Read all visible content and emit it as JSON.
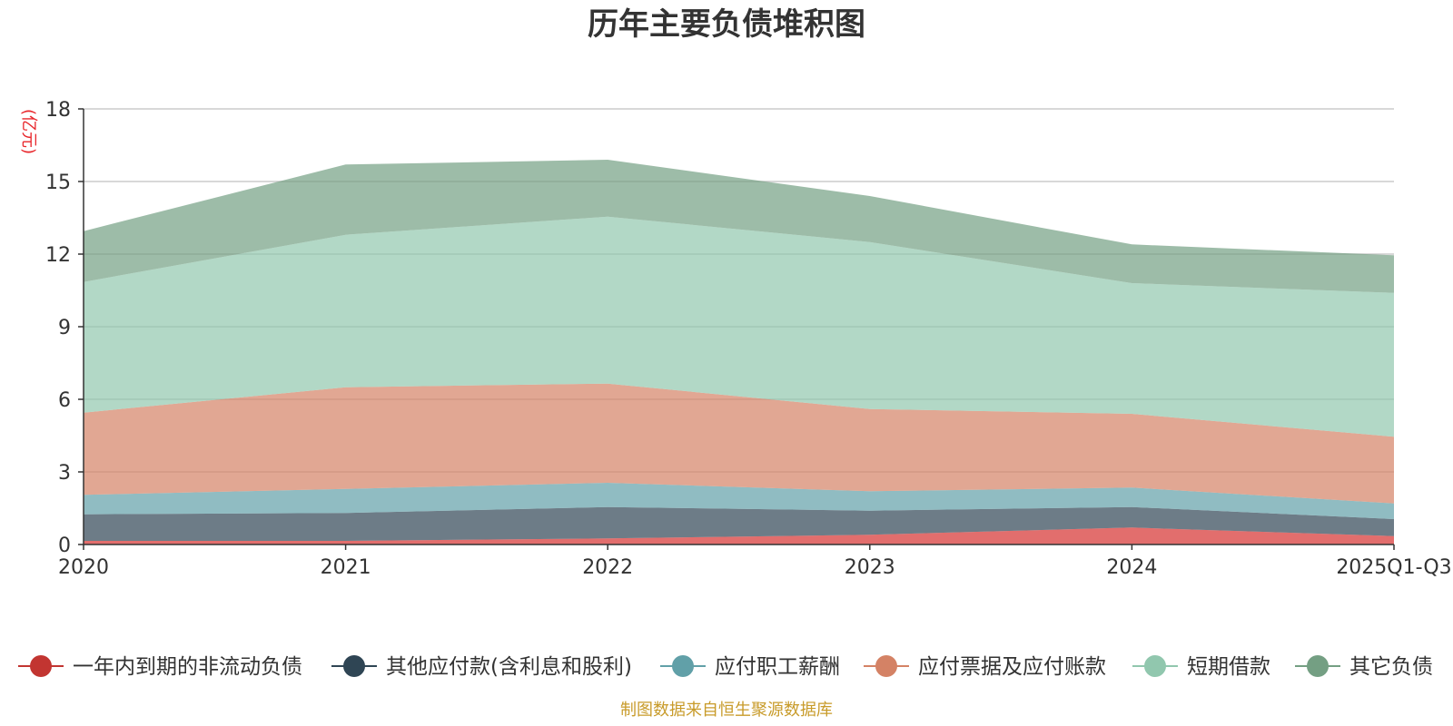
{
  "chart_data": {
    "type": "area",
    "stacked": true,
    "title": "历年主要负债堆积图",
    "unit_label": "(亿元)",
    "source": "制图数据来自恒生聚源数据库",
    "categories": [
      "2020",
      "2021",
      "2022",
      "2023",
      "2024",
      "2025Q1-Q3"
    ],
    "ylim": [
      0,
      18
    ],
    "yticks": [
      0,
      3,
      6,
      9,
      12,
      15,
      18
    ],
    "grid": true,
    "legend_position": "bottom",
    "series": [
      {
        "name": "一年内到期的非流动负债",
        "color": "#d5302f",
        "marker_color": "#c23531",
        "values": [
          0.15,
          0.15,
          0.25,
          0.4,
          0.7,
          0.35
        ]
      },
      {
        "name": "其他应付款(含利息和股利)",
        "color": "#2f4554",
        "marker_color": "#2f4554",
        "values": [
          1.1,
          1.15,
          1.3,
          1.0,
          0.85,
          0.7
        ]
      },
      {
        "name": "应付职工薪酬",
        "color": "#61a0a8",
        "marker_color": "#61a0a8",
        "values": [
          0.8,
          1.0,
          1.0,
          0.8,
          0.8,
          0.65
        ]
      },
      {
        "name": "应付票据及应付账款",
        "color": "#d48265",
        "marker_color": "#d48265",
        "values": [
          3.4,
          4.2,
          4.1,
          3.4,
          3.05,
          2.75
        ]
      },
      {
        "name": "短期借款",
        "color": "#91c7ae",
        "marker_color": "#91c7ae",
        "values": [
          5.4,
          6.3,
          6.9,
          6.9,
          5.4,
          5.95
        ]
      },
      {
        "name": "其它负债",
        "color": "#749f83",
        "marker_color": "#749f83",
        "values": [
          2.1,
          2.9,
          2.35,
          1.9,
          1.6,
          1.55
        ]
      }
    ]
  }
}
